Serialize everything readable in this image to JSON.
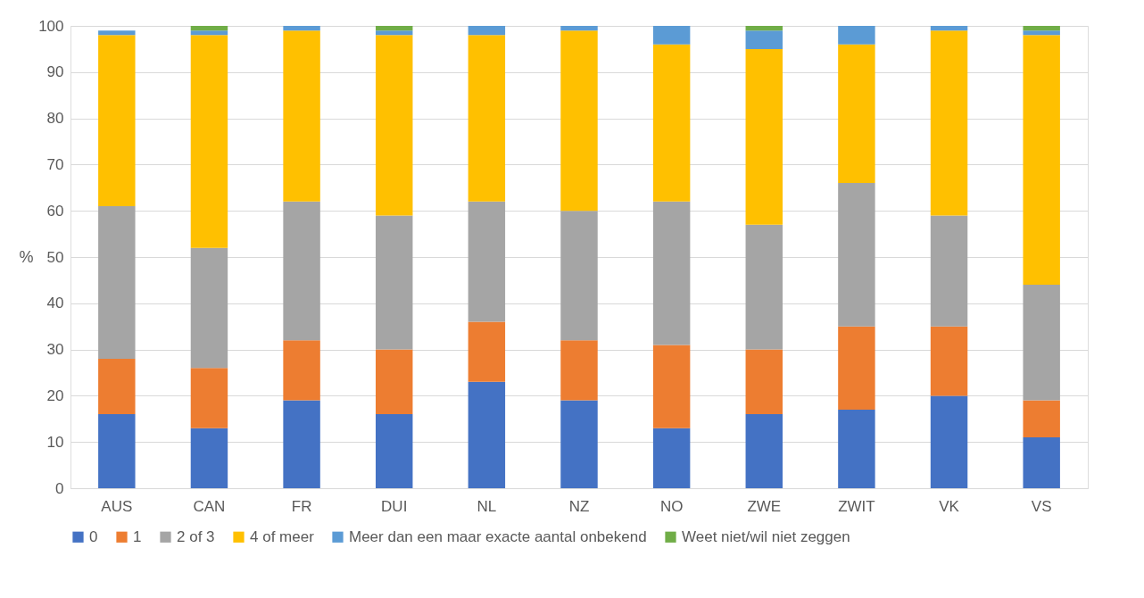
{
  "chart_data": {
    "type": "bar",
    "stacked": true,
    "ylabel": "%",
    "ylim": [
      0,
      100
    ],
    "yticks": [
      0,
      10,
      20,
      30,
      40,
      50,
      60,
      70,
      80,
      90,
      100
    ],
    "grid": "y",
    "legend": "bottom",
    "categories": [
      "AUS",
      "CAN",
      "FR",
      "DUI",
      "NL",
      "NZ",
      "NO",
      "ZWE",
      "ZWIT",
      "VK",
      "VS"
    ],
    "series": [
      {
        "name": "0",
        "color": "#4472c4",
        "values": [
          16,
          13,
          19,
          16,
          23,
          19,
          13,
          16,
          17,
          20,
          11
        ]
      },
      {
        "name": "1",
        "color": "#ed7d31",
        "values": [
          12,
          13,
          13,
          14,
          13,
          13,
          18,
          14,
          18,
          15,
          8
        ]
      },
      {
        "name": "2 of 3",
        "color": "#a5a5a5",
        "values": [
          33,
          26,
          30,
          29,
          26,
          28,
          31,
          27,
          31,
          24,
          25
        ]
      },
      {
        "name": "4 of meer",
        "color": "#ffc000",
        "values": [
          37,
          46,
          37,
          39,
          36,
          39,
          34,
          38,
          30,
          40,
          54
        ]
      },
      {
        "name": "Meer dan een maar exacte aantal onbekend",
        "color": "#5b9bd5",
        "values": [
          1,
          1,
          1,
          1,
          2,
          1,
          4,
          4,
          4,
          1,
          1
        ]
      },
      {
        "name": "Weet niet/wil niet zeggen",
        "color": "#70ad47",
        "values": [
          0,
          1,
          0,
          1,
          0,
          0,
          0,
          1,
          0,
          0,
          1
        ]
      }
    ]
  }
}
